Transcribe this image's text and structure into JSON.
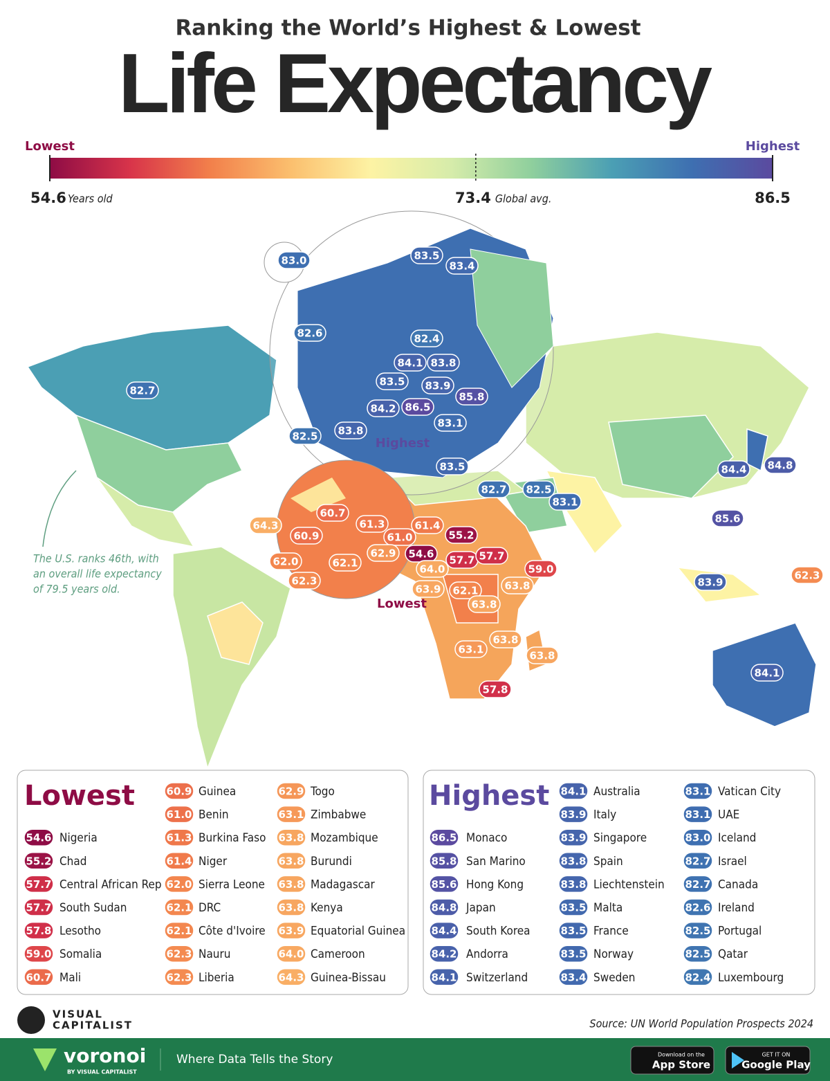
{
  "title": "Ranking the World’s Highest & Lowest",
  "headline": "Life Expectancy",
  "scale": {
    "min": 54.6,
    "min_unit": "Years old",
    "avg": 73.4,
    "avg_label": "Global avg.",
    "max": 86.5,
    "colors": [
      "#8e0c45",
      "#d8344a",
      "#f2804b",
      "#fbbf6e",
      "#fdf3a4",
      "#d6ecaa",
      "#8fcf9d",
      "#4b9fb4",
      "#3e6fb1",
      "#5b4a9f"
    ]
  },
  "note": [
    "The U.S. ranks 46th, with",
    "an overall life expectancy",
    "of 79.5 years old."
  ],
  "lowest": {
    "title": "Lowest",
    "entries": [
      {
        "country": "Nigeria",
        "value": 54.6
      },
      {
        "country": "Chad",
        "value": 55.2
      },
      {
        "country": "Central African Rep",
        "value": 57.7
      },
      {
        "country": "South Sudan",
        "value": 57.7
      },
      {
        "country": "Lesotho",
        "value": 57.8
      },
      {
        "country": "Somalia",
        "value": 59,
        "label": "59.0"
      },
      {
        "country": "Mali",
        "value": 60.7
      },
      {
        "country": "Guinea",
        "value": 60.9
      },
      {
        "country": "Benin",
        "value": 61,
        "label": "61.0"
      },
      {
        "country": "Burkina Faso",
        "value": 61.3
      },
      {
        "country": "Niger",
        "value": 61.4
      },
      {
        "country": "Sierra Leone",
        "value": 62,
        "label": "62.0"
      },
      {
        "country": "DRC",
        "value": 62.1
      },
      {
        "country": "Côte d'Ivoire",
        "value": 62.1
      },
      {
        "country": "Nauru",
        "value": 62.3
      },
      {
        "country": "Liberia",
        "value": 62.3
      },
      {
        "country": "Togo",
        "value": 62.9
      },
      {
        "country": "Zimbabwe",
        "value": 63.1
      },
      {
        "country": "Mozambique",
        "value": 63.8
      },
      {
        "country": "Burundi",
        "value": 63.8
      },
      {
        "country": "Madagascar",
        "value": 63.8
      },
      {
        "country": "Kenya",
        "value": 63.8
      },
      {
        "country": "Equatorial Guinea",
        "value": 63.9
      },
      {
        "country": "Cameroon",
        "value": 64,
        "label": "64.0"
      },
      {
        "country": "Guinea-Bissau",
        "value": 64.3
      }
    ]
  },
  "highest": {
    "title": "Highest",
    "entries": [
      {
        "country": "Monaco",
        "value": 86.5
      },
      {
        "country": "San Marino",
        "value": 85.8
      },
      {
        "country": "Hong Kong",
        "value": 85.6
      },
      {
        "country": "Japan",
        "value": 84.8
      },
      {
        "country": "South Korea",
        "value": 84.4
      },
      {
        "country": "Andorra",
        "value": 84.2
      },
      {
        "country": "Switzerland",
        "value": 84.1
      },
      {
        "country": "Australia",
        "value": 84.1
      },
      {
        "country": "Italy",
        "value": 83.9
      },
      {
        "country": "Singapore",
        "value": 83.9
      },
      {
        "country": "Spain",
        "value": 83.8
      },
      {
        "country": "Liechtenstein",
        "value": 83.8
      },
      {
        "country": "Malta",
        "value": 83.5
      },
      {
        "country": "France",
        "value": 83.5
      },
      {
        "country": "Norway",
        "value": 83.5
      },
      {
        "country": "Sweden",
        "value": 83.4
      },
      {
        "country": "Vatican City",
        "value": 83.1
      },
      {
        "country": "UAE",
        "value": 83.1
      },
      {
        "country": "Iceland",
        "value": 83,
        "label": "83.0"
      },
      {
        "country": "Israel",
        "value": 82.7
      },
      {
        "country": "Canada",
        "value": 82.7
      },
      {
        "country": "Ireland",
        "value": 82.6
      },
      {
        "country": "Portugal",
        "value": 82.5
      },
      {
        "country": "Qatar",
        "value": 82.5
      },
      {
        "country": "Luxembourg",
        "value": 82.4
      }
    ]
  },
  "footer": {
    "brand": "VISUAL",
    "brand2": "CAPITALIST",
    "source": "Source: UN World Population Prospects 2024",
    "app": "voronoi",
    "app_by": "BY VISUAL CAPITALIST",
    "tagline": "Where Data Tells the Story",
    "apple_small": "Download on the",
    "apple": "App Store",
    "google_small": "GET IT ON",
    "google": "Google Play"
  }
}
